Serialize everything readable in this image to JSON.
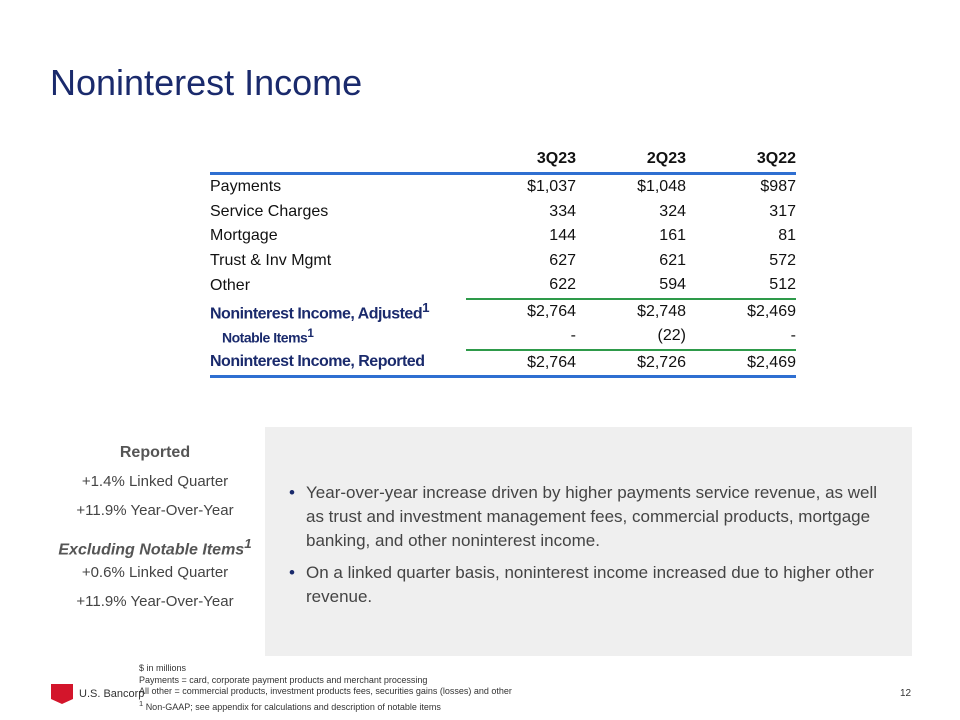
{
  "title": "Noninterest Income",
  "table": {
    "headers": [
      "",
      "3Q23",
      "2Q23",
      "3Q22"
    ],
    "rows": [
      [
        "Payments",
        "$1,037",
        "$1,048",
        "$987"
      ],
      [
        "Service Charges",
        "334",
        "324",
        "317"
      ],
      [
        "Mortgage",
        "144",
        "161",
        "81"
      ],
      [
        "Trust & Inv Mgmt",
        "627",
        "621",
        "572"
      ],
      [
        "Other",
        "622",
        "594",
        "512"
      ]
    ],
    "adjusted": [
      "Noninterest Income, Adjusted",
      "$2,764",
      "$2,748",
      "$2,469"
    ],
    "notable": [
      "Notable Items",
      "-",
      "(22)",
      "-"
    ],
    "reported": [
      "Noninterest Income, Reported",
      "$2,764",
      "$2,726",
      "$2,469"
    ],
    "sup": "1"
  },
  "left": {
    "reported": "Reported",
    "r1": "+1.4% Linked Quarter",
    "r2": "+11.9% Year-Over-Year",
    "excl": "Excluding Notable Items",
    "e1": "+0.6% Linked Quarter",
    "e2": "+11.9% Year-Over-Year"
  },
  "bullets": [
    "Year-over-year increase driven by higher payments service revenue, as well as trust and investment management fees, commercial products, mortgage banking, and other noninterest income.",
    "On a linked quarter basis, noninterest income increased due to higher other revenue."
  ],
  "footer": {
    "brand": "U.S. Bancorp",
    "l1": "$ in millions",
    "l2": "Payments = card, corporate payment products and merchant processing",
    "l3": "All other = commercial products, investment products fees, securities gains (losses) and other",
    "l4": "Non-GAAP; see appendix for calculations and description of notable items",
    "page": "12"
  }
}
